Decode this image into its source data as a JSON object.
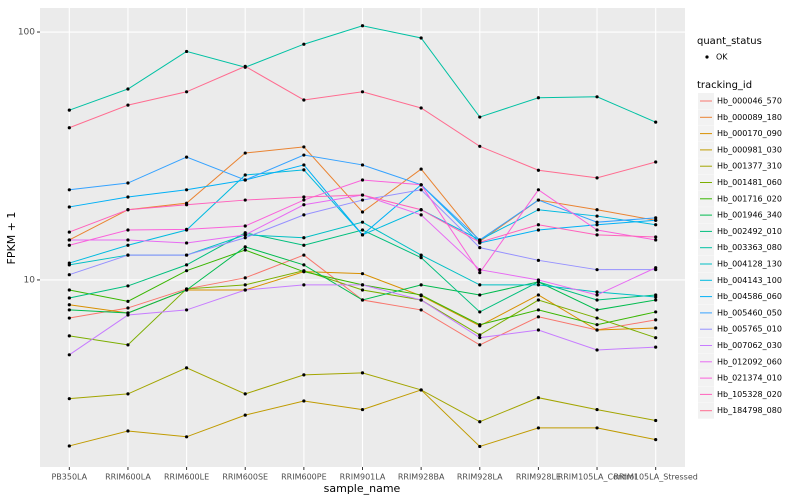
{
  "chart_data": {
    "type": "line",
    "x_label": "sample_name",
    "y_label": "FPKM + 1",
    "log_y": true,
    "grid": true,
    "categories": [
      "PB350LA",
      "RRIM600LA",
      "RRIM600LE",
      "RRIM600SE",
      "RRIM600PE",
      "RRIM901LA",
      "RRIM928BA",
      "RRIM928LA",
      "RRIM928LE",
      "RRIM105LA_Control",
      "RRIM105LA_Stressed"
    ],
    "ylim": [
      1.76,
      125
    ],
    "yticks": [
      10,
      100
    ],
    "legend_position": "right",
    "status_legend": {
      "title": "quant_status",
      "labels": [
        "OK"
      ]
    },
    "legend_title": "tracking_id",
    "series": [
      {
        "name": "Hb_000046_570",
        "color": "#F8766D",
        "values": [
          7.02,
          7.71,
          9.2,
          10.2,
          12.6,
          8.3,
          7.57,
          5.47,
          7.1,
          6.28,
          6.9
        ]
      },
      {
        "name": "Hb_000089_180",
        "color": "#EA8331",
        "values": [
          14.5,
          19.2,
          20.4,
          32.5,
          34.4,
          18.8,
          28.0,
          14.3,
          21.0,
          19.2,
          17.4
        ]
      },
      {
        "name": "Hb_000170_090",
        "color": "#D89000",
        "values": [
          7.94,
          7.36,
          9.11,
          9.11,
          10.8,
          10.6,
          8.63,
          6.53,
          8.7,
          6.28,
          6.4
        ]
      },
      {
        "name": "Hb_000981_030",
        "color": "#C09B00",
        "values": [
          2.14,
          2.46,
          2.33,
          2.85,
          3.25,
          3.0,
          3.6,
          2.13,
          2.53,
          2.53,
          2.27
        ]
      },
      {
        "name": "Hb_001377_310",
        "color": "#A3A500",
        "values": [
          3.32,
          3.47,
          4.42,
          3.47,
          4.14,
          4.22,
          3.6,
          2.68,
          3.35,
          3.0,
          2.71
        ]
      },
      {
        "name": "Hb_001481_060",
        "color": "#7CAE00",
        "values": [
          5.95,
          5.47,
          9.2,
          9.55,
          10.9,
          9.11,
          8.3,
          6.0,
          8.3,
          7.02,
          5.85
        ]
      },
      {
        "name": "Hb_001716_020",
        "color": "#39B600",
        "values": [
          9.11,
          8.2,
          10.9,
          13.2,
          10.8,
          9.55,
          8.7,
          6.6,
          7.57,
          6.6,
          7.43
        ]
      },
      {
        "name": "Hb_001946_340",
        "color": "#00BB4E",
        "values": [
          7.57,
          7.36,
          9.11,
          13.6,
          11.5,
          8.3,
          9.55,
          8.7,
          9.82,
          7.57,
          8.3
        ]
      },
      {
        "name": "Hb_002492_010",
        "color": "#00BF7D",
        "values": [
          8.46,
          9.46,
          11.5,
          15.5,
          13.8,
          15.9,
          12.3,
          7.43,
          9.82,
          8.3,
          8.7
        ]
      },
      {
        "name": "Hb_003363_080",
        "color": "#00C1A3",
        "values": [
          48.4,
          58.9,
          83.5,
          72.1,
          89.3,
          106,
          94.6,
          45.4,
          54.3,
          54.8,
          43.3
        ]
      },
      {
        "name": "Hb_004128_130",
        "color": "#00BFC4",
        "values": [
          11.5,
          12.6,
          12.6,
          15.2,
          14.8,
          17.1,
          12.6,
          9.55,
          9.55,
          8.94,
          8.54
        ]
      },
      {
        "name": "Hb_004143_100",
        "color": "#00BAE0",
        "values": [
          11.7,
          13.8,
          15.9,
          26.5,
          27.8,
          15.2,
          19.2,
          14.5,
          19.2,
          18.1,
          16.7
        ]
      },
      {
        "name": "Hb_004586_060",
        "color": "#00B0F6",
        "values": [
          19.7,
          21.6,
          23.1,
          25.3,
          29.1,
          15.2,
          24.2,
          14.1,
          15.9,
          16.7,
          17.4
        ]
      },
      {
        "name": "Hb_005460_050",
        "color": "#35A2FF",
        "values": [
          23.1,
          24.6,
          31.3,
          25.3,
          31.9,
          29.1,
          24.2,
          14.5,
          21.0,
          17.1,
          17.8
        ]
      },
      {
        "name": "Hb_005765_010",
        "color": "#9590FF",
        "values": [
          10.5,
          12.6,
          12.6,
          14.8,
          18.3,
          21.0,
          23.1,
          13.5,
          12.0,
          11.0,
          11.0
        ]
      },
      {
        "name": "Hb_007062_030",
        "color": "#C77CFF",
        "values": [
          4.99,
          7.22,
          7.57,
          9.11,
          9.55,
          9.55,
          8.3,
          5.85,
          6.28,
          5.22,
          5.36
        ]
      },
      {
        "name": "Hb_012092_060",
        "color": "#E76BF3",
        "values": [
          14.5,
          14.5,
          14.1,
          15.2,
          20.1,
          22.0,
          18.3,
          11.0,
          10,
          8.7,
          11.2
        ]
      },
      {
        "name": "Hb_021374_010",
        "color": "#FA62DB",
        "values": [
          13.8,
          15.9,
          16.0,
          16.5,
          21.0,
          25.3,
          24.2,
          10.7,
          23.1,
          15.9,
          14.5
        ]
      },
      {
        "name": "Hb_105328_020",
        "color": "#FF62BC",
        "values": [
          15.6,
          19.2,
          20.1,
          21.0,
          21.6,
          22.0,
          19.2,
          14.2,
          16.7,
          15.2,
          14.9
        ]
      },
      {
        "name": "Hb_184798_080",
        "color": "#FF6C90",
        "values": [
          41.1,
          50.7,
          57.4,
          72.7,
          53.2,
          57.4,
          49.4,
          34.6,
          27.7,
          25.8,
          29.9
        ]
      }
    ]
  }
}
